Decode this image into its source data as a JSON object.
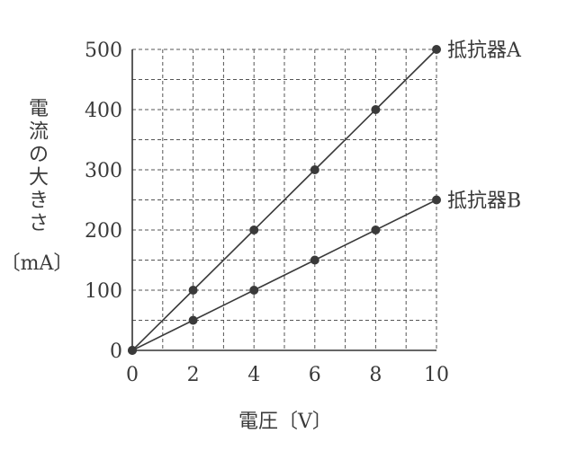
{
  "chart_data": {
    "type": "line",
    "x": [
      0,
      2,
      4,
      6,
      8,
      10
    ],
    "xlim": [
      0,
      10
    ],
    "ylim": [
      0,
      500
    ],
    "x_ticks": [
      "0",
      "2",
      "4",
      "6",
      "8",
      "10"
    ],
    "y_ticks": [
      "0",
      "100",
      "200",
      "300",
      "400",
      "500"
    ],
    "xlabel": "電圧〔V〕",
    "ylabel_lines": [
      "電",
      "流",
      "の",
      "大",
      "き",
      "さ"
    ],
    "ylabel_unit": "〔mA〕",
    "grid": true,
    "series": [
      {
        "name": "抵抗器A",
        "values": [
          0,
          100,
          200,
          300,
          400,
          500
        ]
      },
      {
        "name": "抵抗器B",
        "values": [
          0,
          50,
          100,
          150,
          200,
          250
        ]
      }
    ]
  }
}
